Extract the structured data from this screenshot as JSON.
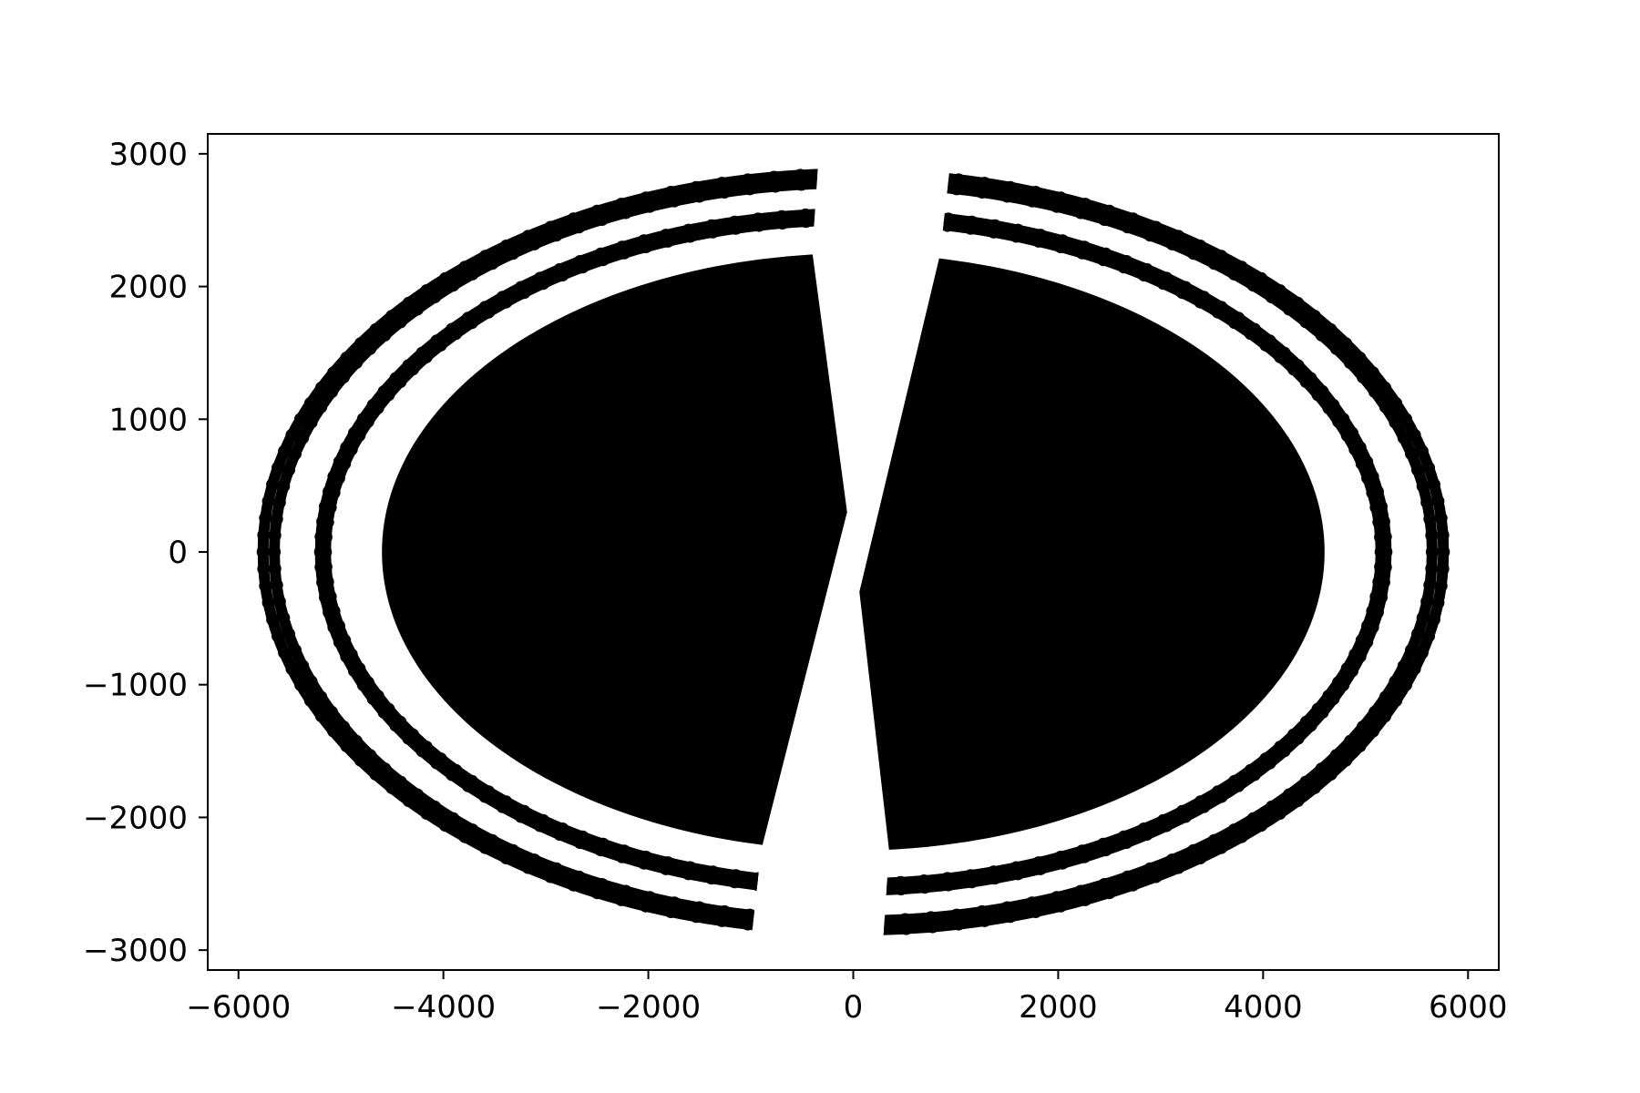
{
  "chart_data": {
    "type": "scatter",
    "title": "",
    "xlabel": "",
    "ylabel": "",
    "xlim": [
      -6300,
      6300
    ],
    "ylim": [
      -3150,
      3150
    ],
    "xticks": [
      -6000,
      -4000,
      -2000,
      0,
      2000,
      4000,
      6000
    ],
    "yticks": [
      -3000,
      -2000,
      -1000,
      0,
      1000,
      2000,
      3000
    ],
    "xtick_labels": [
      "−6000",
      "−4000",
      "−2000",
      "0",
      "2000",
      "4000",
      "6000"
    ],
    "ytick_labels": [
      "−3000",
      "−2000",
      "−1000",
      "0",
      "1000",
      "2000",
      "3000"
    ],
    "grid": false,
    "legend": "none",
    "marker_color": "#000000",
    "series": [
      {
        "name": "",
        "description_of_structure": "Two symmetric lobes of points (left and right) separated by a wedge-shaped gap through the origin; filled inner core with several concentric outer elliptical arcs.",
        "filled_core": {
          "semi_axis_x": 4600,
          "semi_axis_y": 2250
        },
        "rings": [
          {
            "semi_axis_x": 5150,
            "semi_axis_y": 2500
          },
          {
            "semi_axis_x": 5200,
            "semi_axis_y": 2550
          },
          {
            "semi_axis_x": 5650,
            "semi_axis_y": 2780
          },
          {
            "semi_axis_x": 5760,
            "semi_axis_y": 2850
          }
        ],
        "gap_edges": {
          "left_top": [
            -400,
            2260
          ],
          "left_bottom": [
            -900,
            -2250
          ],
          "right_top": [
            850,
            2250
          ],
          "right_bottom": [
            350,
            -2250
          ]
        }
      }
    ]
  }
}
